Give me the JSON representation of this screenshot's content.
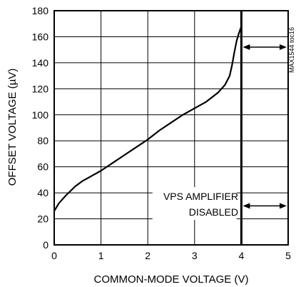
{
  "chart_data": {
    "type": "line",
    "title": "",
    "xlabel": "COMMON-MODE VOLTAGE (V)",
    "ylabel": "OFFSET VOLTAGE (µV)",
    "xlim": [
      0,
      5
    ],
    "ylim": [
      0,
      180
    ],
    "xticks": [
      "0",
      "1",
      "2",
      "3",
      "4",
      "5"
    ],
    "yticks": [
      "0",
      "20",
      "40",
      "60",
      "80",
      "100",
      "120",
      "140",
      "160",
      "180"
    ],
    "grid": true,
    "series": [
      {
        "x": [
          0,
          0.1,
          0.25,
          0.45,
          0.6,
          0.8,
          1.0,
          1.25,
          1.5,
          1.75,
          2.0,
          2.25,
          2.5,
          2.75,
          3.0,
          3.25,
          3.5,
          3.65,
          3.75,
          3.8,
          3.85,
          3.9,
          3.95,
          4.0
        ],
        "y": [
          26,
          32,
          38,
          45,
          49,
          53,
          57,
          63,
          69,
          75,
          81,
          88,
          94,
          100,
          105,
          110,
          117,
          123,
          130,
          138,
          148,
          157,
          163,
          168
        ]
      }
    ],
    "annotations": {
      "disabled_label_line1": "VPS AMPLIFIER",
      "disabled_label_line2": "DISABLED",
      "disabled_region_start": 4,
      "disabled_region_end": 5,
      "arrow_top_y": 152,
      "arrow_bottom_y": 30
    },
    "side_code": "MAX1544 toc16"
  }
}
